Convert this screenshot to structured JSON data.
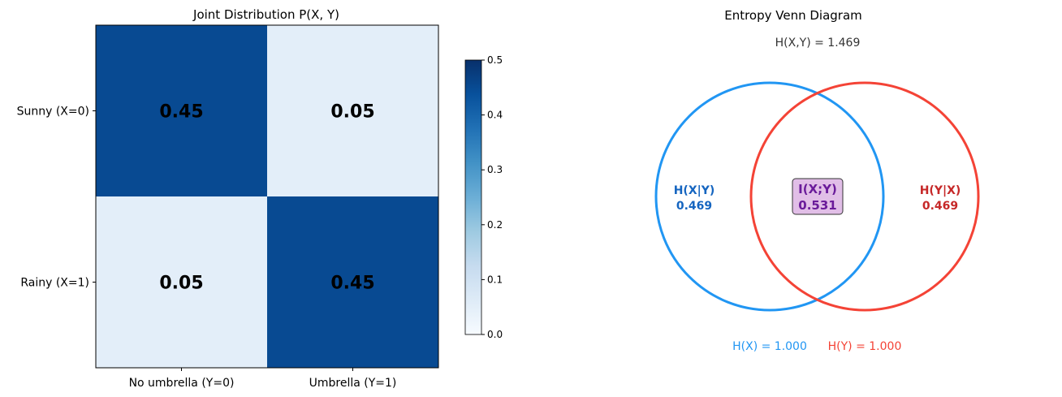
{
  "chart_data": [
    {
      "type": "heatmap",
      "title": "Joint Distribution P(X, Y)",
      "x_categories": [
        "No umbrella (Y=0)",
        "Umbrella (Y=1)"
      ],
      "y_categories": [
        "Sunny (X=0)",
        "Rainy (X=1)"
      ],
      "values": [
        [
          0.45,
          0.05
        ],
        [
          0.05,
          0.45
        ]
      ],
      "cell_labels": [
        [
          "0.45",
          "0.05"
        ],
        [
          "0.05",
          "0.45"
        ]
      ],
      "colormap": "Blues",
      "colorbar": {
        "range": [
          0,
          0.5
        ],
        "ticks": [
          "0.0",
          "0.1",
          "0.2",
          "0.3",
          "0.4",
          "0.5"
        ]
      }
    },
    {
      "type": "venn",
      "title": "Entropy Venn Diagram",
      "total_label": "H(X,Y) = 1.469",
      "regions": {
        "left": {
          "name": "H(X|Y)",
          "value": "0.469",
          "color": "#1565c0"
        },
        "center": {
          "name": "I(X;Y)",
          "value": "0.531",
          "color": "#6a1b9a",
          "box_fill": "#e1bee7"
        },
        "right": {
          "name": "H(Y|X)",
          "value": "0.469",
          "color": "#c62828"
        }
      },
      "sets": [
        {
          "label": "H(X) = 1.000",
          "value": 1.0,
          "color": "#2196f3"
        },
        {
          "label": "H(Y) = 1.000",
          "value": 1.0,
          "color": "#f44336"
        }
      ]
    }
  ]
}
